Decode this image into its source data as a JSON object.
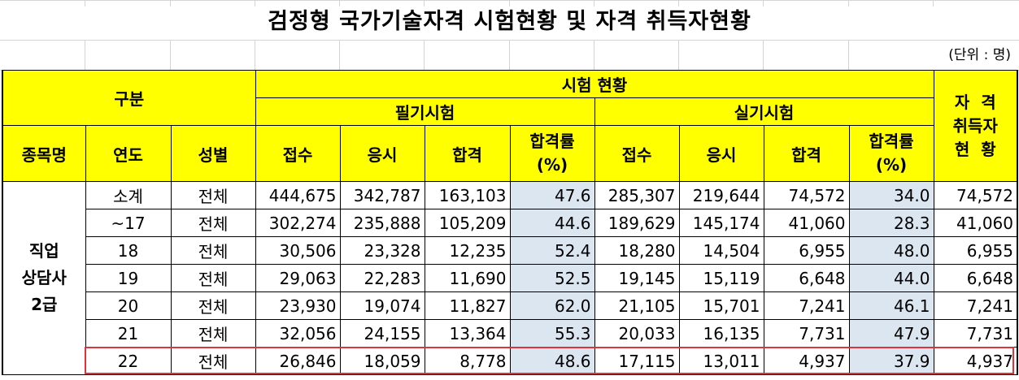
{
  "title": "검정형 국가기술자격 시험현황 및 자격 취득자현황",
  "unit": "(단위 : 명)",
  "header": {
    "gubun": "구분",
    "exam_status": "시험 현황",
    "written": "필기시험",
    "practical": "실기시험",
    "cert_line1": "자  격",
    "cert_line2": "취득자",
    "cert_line3": "현  황",
    "item_name": "종목명",
    "year": "연도",
    "gender": "성별",
    "applied": "접수",
    "took": "응시",
    "passed": "합격",
    "rate_line1": "합격률",
    "rate_line2": "(%)"
  },
  "group": {
    "line1": "직업",
    "line2": "상담사",
    "line3": "2급"
  },
  "rows": [
    {
      "year": "소계",
      "gender": "전체",
      "w_applied": "444,675",
      "w_took": "342,787",
      "w_passed": "163,103",
      "w_rate": "47.6",
      "p_applied": "285,307",
      "p_took": "219,644",
      "p_passed": "74,572",
      "p_rate": "34.0",
      "certified": "74,572"
    },
    {
      "year": "~17",
      "gender": "전체",
      "w_applied": "302,274",
      "w_took": "235,888",
      "w_passed": "105,209",
      "w_rate": "44.6",
      "p_applied": "189,629",
      "p_took": "145,174",
      "p_passed": "41,060",
      "p_rate": "28.3",
      "certified": "41,060"
    },
    {
      "year": "18",
      "gender": "전체",
      "w_applied": "30,506",
      "w_took": "23,328",
      "w_passed": "12,235",
      "w_rate": "52.4",
      "p_applied": "18,280",
      "p_took": "14,504",
      "p_passed": "6,955",
      "p_rate": "48.0",
      "certified": "6,955"
    },
    {
      "year": "19",
      "gender": "전체",
      "w_applied": "29,063",
      "w_took": "22,283",
      "w_passed": "11,690",
      "w_rate": "52.5",
      "p_applied": "19,145",
      "p_took": "15,119",
      "p_passed": "6,648",
      "p_rate": "44.0",
      "certified": "6,648"
    },
    {
      "year": "20",
      "gender": "전체",
      "w_applied": "23,930",
      "w_took": "19,074",
      "w_passed": "11,827",
      "w_rate": "62.0",
      "p_applied": "21,105",
      "p_took": "15,701",
      "p_passed": "7,241",
      "p_rate": "46.1",
      "certified": "7,241"
    },
    {
      "year": "21",
      "gender": "전체",
      "w_applied": "32,056",
      "w_took": "24,155",
      "w_passed": "13,364",
      "w_rate": "55.3",
      "p_applied": "20,033",
      "p_took": "16,135",
      "p_passed": "7,731",
      "p_rate": "47.9",
      "certified": "7,731"
    },
    {
      "year": "22",
      "gender": "전체",
      "w_applied": "26,846",
      "w_took": "18,059",
      "w_passed": "8,778",
      "w_rate": "48.6",
      "p_applied": "17,115",
      "p_took": "13,011",
      "p_passed": "4,937",
      "p_rate": "37.9",
      "certified": "4,937"
    }
  ],
  "colors": {
    "header_fill": "#ffff00",
    "rate_fill": "#dce6f1",
    "highlight_border": "#e0323a"
  }
}
